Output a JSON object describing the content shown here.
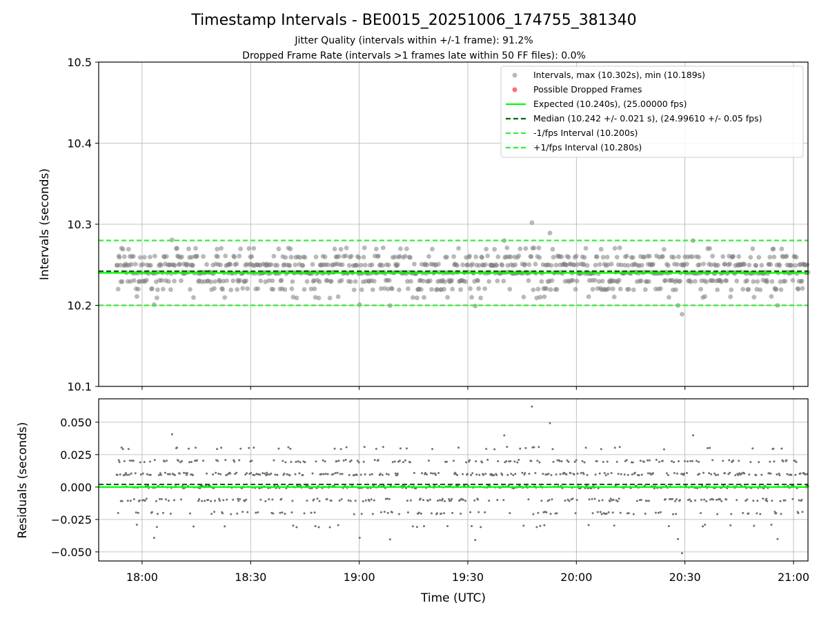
{
  "chart_data": {
    "type": "scatter",
    "title": "Timestamp Intervals - BE0015_20251006_174755_381340",
    "subtitle_lines": [
      "Jitter Quality (intervals within +/-1 frame): 91.2%",
      "Dropped Frame Rate (intervals >1 frames late within 50 FF files): 0.0%"
    ],
    "xlabel": "Time (UTC)",
    "x_range": [
      "17:48",
      "21:04"
    ],
    "x_ticks": [
      "18:00",
      "18:30",
      "19:00",
      "19:30",
      "20:00",
      "20:30",
      "21:00"
    ],
    "grid": true,
    "legend_position": "top-right",
    "colors": {
      "points": "#808080",
      "dropped": "#ff3030",
      "expected": "#00ff00",
      "median": "#006400",
      "bounds": "#33ee33"
    },
    "intervals_panel": {
      "ylabel": "Intervals (seconds)",
      "ylim": [
        10.1,
        10.5
      ],
      "y_ticks": [
        "10.1",
        "10.2",
        "10.3",
        "10.4",
        "10.5"
      ],
      "series": [
        {
          "name": "Intervals, max (10.302s), min (10.189s)",
          "kind": "scatter",
          "max": 10.302,
          "min": 10.189,
          "center": 10.242,
          "spread": 0.021,
          "count": 1000,
          "x_start": "17:53",
          "x_end": "21:04"
        },
        {
          "name": "Possible Dropped Frames",
          "kind": "scatter",
          "points": []
        },
        {
          "name": "Expected (10.240s), (25.00000 fps)",
          "kind": "hline",
          "y": 10.24,
          "style": "solid"
        },
        {
          "name": "Median (10.242 +/- 0.021 s), (24.99610 +/- 0.05 fps)",
          "kind": "hline",
          "y": 10.242,
          "style": "dashed"
        },
        {
          "name": "-1/fps Interval (10.200s)",
          "kind": "hline",
          "y": 10.2,
          "style": "dashed"
        },
        {
          "name": "+1/fps Interval (10.280s)",
          "kind": "hline",
          "y": 10.28,
          "style": "dashed"
        }
      ]
    },
    "residuals_panel": {
      "ylabel": "Residuals (seconds)",
      "ylim": [
        -0.057,
        0.068
      ],
      "y_ticks": [
        "−0.050",
        "−0.025",
        "0.000",
        "0.025",
        "0.050"
      ],
      "y_tick_values": [
        -0.05,
        -0.025,
        0.0,
        0.025,
        0.05
      ],
      "median_line": 0.002,
      "zero_line": 0.0
    }
  }
}
